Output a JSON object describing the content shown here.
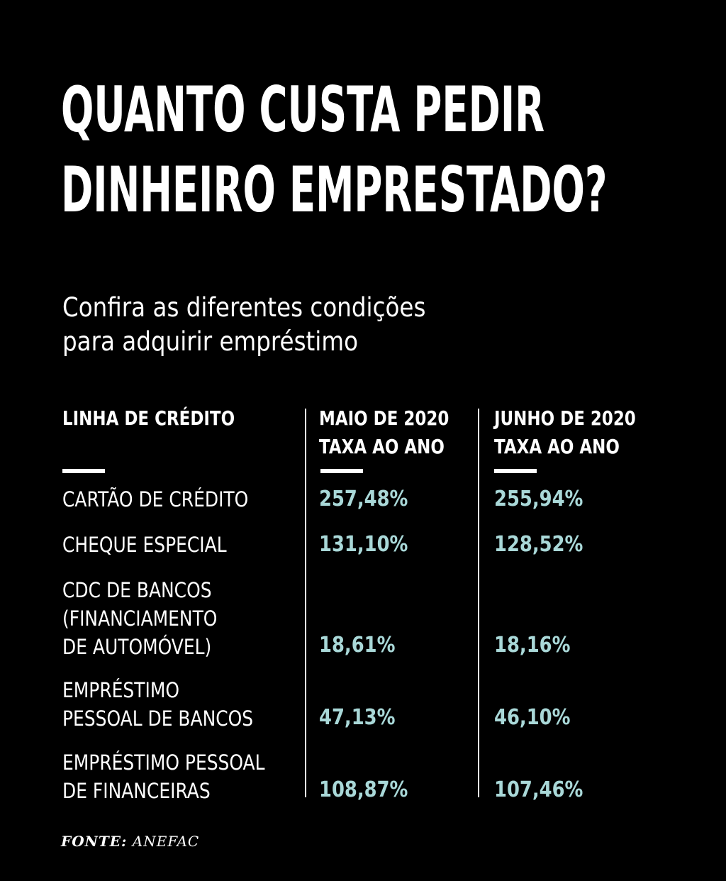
{
  "title_lines": [
    "QUANTO CUSTA PEDIR",
    "DINHEIRO EMPRESTADO?"
  ],
  "subtitle_lines": [
    "Confira as diferentes condições",
    "para adquirir empréstimo"
  ],
  "colors": {
    "background": "#000000",
    "text": "#ffffff",
    "value_accent": "#a9d8d8"
  },
  "chart_data": {
    "type": "table",
    "columns": [
      {
        "lines": [
          "LINHA DE CRÉDITO"
        ]
      },
      {
        "lines": [
          "MAIO DE 2020",
          "TAXA AO ANO"
        ]
      },
      {
        "lines": [
          "JUNHO DE 2020",
          "TAXA AO ANO"
        ]
      }
    ],
    "rows": [
      {
        "label_lines": [
          "CARTÃO DE CRÉDITO"
        ],
        "may": "257,48%",
        "june": "255,94%"
      },
      {
        "label_lines": [
          "CHEQUE ESPECIAL"
        ],
        "may": "131,10%",
        "june": "128,52%"
      },
      {
        "label_lines": [
          "CDC DE BANCOS",
          "(FINANCIAMENTO",
          "DE AUTOMÓVEL)"
        ],
        "may": "18,61%",
        "june": "18,16%"
      },
      {
        "label_lines": [
          "EMPRÉSTIMO",
          "PESSOAL DE BANCOS"
        ],
        "may": "47,13%",
        "june": "46,10%"
      },
      {
        "label_lines": [
          "EMPRÉSTIMO PESSOAL",
          "DE FINANCEIRAS"
        ],
        "may": "108,87%",
        "june": "107,46%"
      }
    ]
  },
  "source": {
    "label": "FONTE:",
    "value": "ANEFAC"
  }
}
